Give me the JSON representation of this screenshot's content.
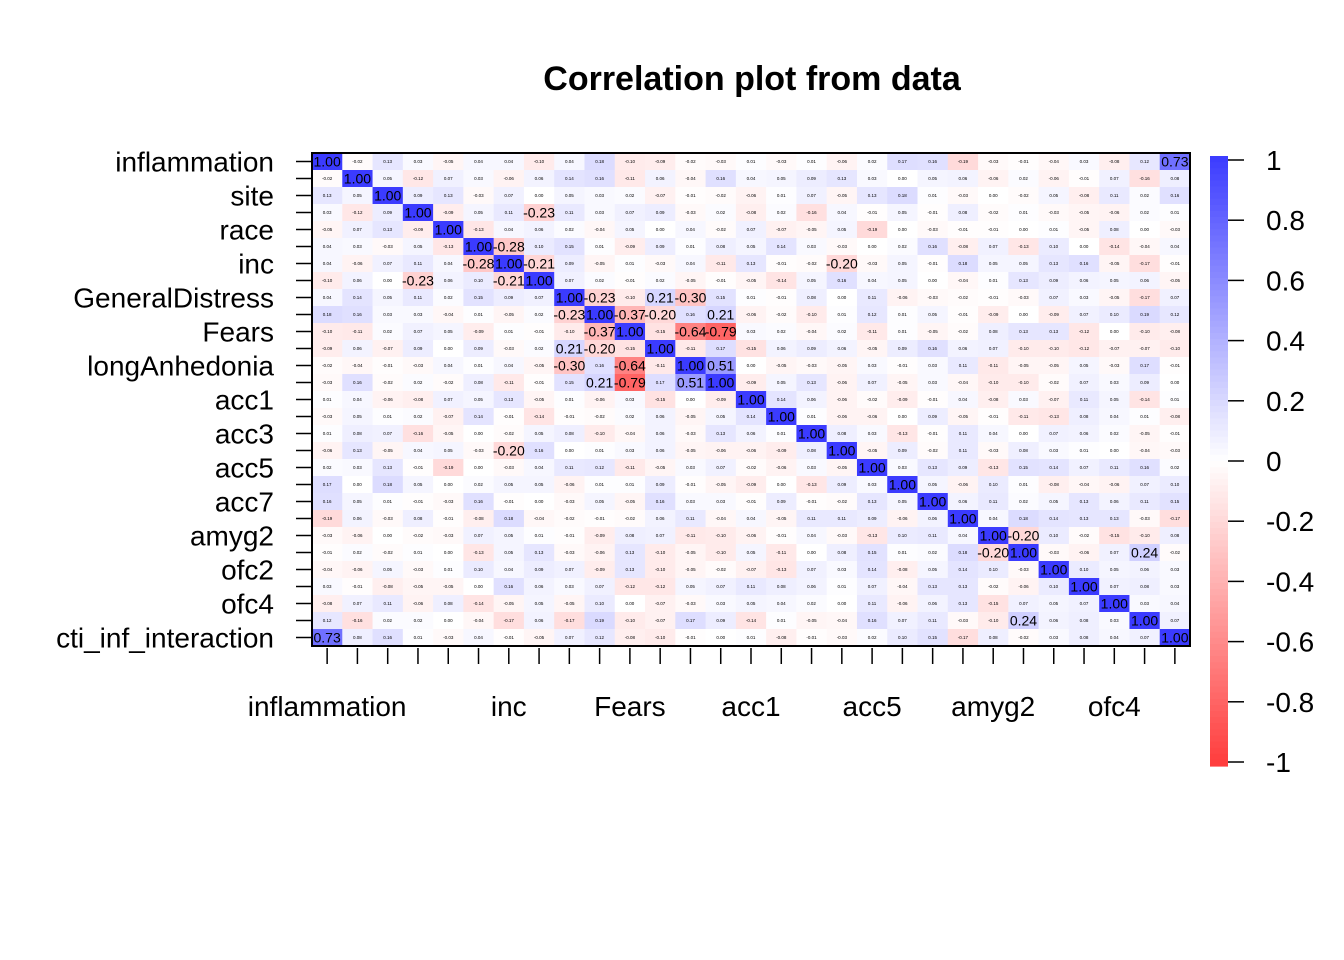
{
  "chart_data": {
    "type": "heatmap",
    "title": "Correlation plot from data",
    "labels": [
      "inflammation",
      "",
      "site",
      "",
      "race",
      "",
      "inc",
      "",
      "GeneralDistress",
      "",
      "Fears",
      "",
      "longAnhedonia",
      "",
      "acc1",
      "",
      "acc3",
      "",
      "acc5",
      "",
      "acc7",
      "",
      "amyg2",
      "",
      "ofc2",
      "",
      "ofc4",
      "",
      "cti_inf_interaction"
    ],
    "x_labels": [
      "inflammation",
      "",
      "",
      "",
      "",
      "",
      "inc",
      "",
      "",
      "",
      "Fears",
      "",
      "",
      "",
      "acc1",
      "",
      "",
      "",
      "acc5",
      "",
      "",
      "",
      "amyg2",
      "",
      "",
      "",
      "ofc4",
      "",
      ""
    ],
    "colorbar": {
      "range": [
        -1,
        1
      ],
      "ticks": [
        "1",
        "0.8",
        "0.6",
        "0.4",
        "0.2",
        "0",
        "-0.2",
        "-0.4",
        "-0.6",
        "-0.8",
        "-1"
      ],
      "colors": {
        "negative": "#ff3b3b",
        "zero": "#ffffff",
        "positive": "#3b3bff"
      }
    },
    "values": [
      [
        1.0,
        -0.02,
        0.13,
        0.03,
        -0.05,
        0.04,
        0.04,
        -0.1,
        0.04,
        0.18,
        -0.1,
        -0.09,
        -0.02,
        -0.03,
        0.01,
        -0.03,
        0.01,
        -0.06,
        0.02,
        0.17,
        0.16,
        -0.19,
        -0.03,
        -0.01,
        -0.04,
        0.03,
        -0.08,
        0.12,
        0.73
      ],
      [
        -0.02,
        1.0,
        0.05,
        -0.12,
        0.07,
        0.03,
        -0.06,
        0.06,
        0.14,
        0.16,
        -0.11,
        0.06,
        -0.04,
        0.16,
        0.04,
        0.05,
        0.09,
        0.13,
        0.03,
        -0.0,
        0.05,
        0.06,
        -0.06,
        0.02,
        -0.06,
        -0.01,
        0.07,
        -0.16,
        0.08
      ],
      [
        0.13,
        0.05,
        1.0,
        0.09,
        0.13,
        -0.03,
        0.07,
        -0.0,
        0.05,
        0.03,
        0.02,
        -0.07,
        -0.01,
        -0.02,
        -0.06,
        0.01,
        0.07,
        -0.05,
        0.13,
        0.18,
        0.01,
        -0.03,
        -0.0,
        -0.02,
        0.05,
        -0.08,
        0.11,
        0.02,
        0.16
      ],
      [
        0.03,
        -0.12,
        0.09,
        1.0,
        -0.09,
        0.05,
        0.11,
        -0.23,
        0.11,
        0.03,
        0.07,
        0.09,
        -0.03,
        0.02,
        -0.08,
        0.02,
        -0.16,
        0.04,
        -0.01,
        0.05,
        -0.01,
        0.08,
        -0.02,
        0.01,
        -0.03,
        -0.05,
        -0.06,
        0.02,
        0.01
      ],
      [
        -0.05,
        0.07,
        0.13,
        -0.09,
        1.0,
        -0.13,
        0.04,
        0.06,
        0.02,
        -0.04,
        0.05,
        -0.0,
        0.04,
        -0.02,
        0.07,
        -0.07,
        -0.05,
        0.05,
        -0.19,
        0.0,
        -0.03,
        -0.01,
        -0.01,
        -0.0,
        0.01,
        -0.05,
        0.08,
        0.0,
        -0.03
      ],
      [
        0.04,
        0.03,
        -0.03,
        0.05,
        -0.13,
        1.0,
        -0.28,
        0.1,
        0.15,
        0.01,
        -0.09,
        0.09,
        0.01,
        0.08,
        0.05,
        0.14,
        0.03,
        -0.03,
        -0.0,
        0.02,
        0.16,
        -0.08,
        0.07,
        -0.13,
        0.1,
        0.0,
        -0.14,
        -0.04,
        0.04
      ],
      [
        0.04,
        -0.06,
        0.07,
        0.11,
        0.04,
        -0.28,
        1.0,
        -0.21,
        0.09,
        -0.05,
        0.01,
        -0.03,
        0.04,
        -0.11,
        0.13,
        -0.01,
        -0.02,
        -0.2,
        -0.03,
        0.05,
        -0.01,
        0.18,
        0.05,
        0.05,
        0.13,
        0.16,
        -0.05,
        -0.17,
        -0.01
      ],
      [
        -0.1,
        0.06,
        -0.0,
        -0.23,
        0.06,
        0.1,
        -0.21,
        1.0,
        0.07,
        0.02,
        -0.01,
        0.02,
        -0.05,
        -0.01,
        -0.05,
        -0.14,
        0.05,
        0.16,
        0.04,
        0.05,
        -0.0,
        -0.04,
        0.01,
        0.13,
        0.09,
        0.06,
        0.05,
        0.06,
        -0.05
      ],
      [
        0.04,
        0.14,
        0.05,
        0.11,
        0.02,
        0.15,
        0.09,
        0.07,
        1.0,
        -0.23,
        -0.1,
        0.21,
        -0.3,
        0.15,
        0.01,
        -0.01,
        0.08,
        -0.0,
        0.11,
        -0.06,
        -0.03,
        -0.02,
        -0.01,
        -0.03,
        0.07,
        0.03,
        -0.05,
        -0.17,
        0.07
      ],
      [
        0.18,
        0.16,
        0.03,
        0.03,
        -0.04,
        0.01,
        -0.05,
        0.02,
        -0.23,
        1.0,
        -0.37,
        -0.2,
        0.16,
        0.21,
        -0.06,
        -0.02,
        -0.1,
        0.01,
        0.12,
        0.01,
        0.05,
        -0.01,
        -0.09,
        -0.0,
        -0.09,
        0.07,
        0.1,
        0.19,
        0.12
      ],
      [
        -0.1,
        -0.11,
        0.02,
        0.07,
        0.05,
        -0.09,
        0.01,
        -0.01,
        -0.1,
        -0.37,
        1.0,
        -0.15,
        -0.64,
        -0.79,
        0.03,
        0.02,
        -0.04,
        0.02,
        -0.11,
        0.01,
        -0.05,
        -0.02,
        0.08,
        0.13,
        0.13,
        -0.12,
        0.0,
        -0.1,
        -0.08
      ],
      [
        -0.09,
        0.06,
        -0.07,
        0.09,
        -0.0,
        0.09,
        -0.03,
        0.02,
        0.21,
        -0.2,
        -0.15,
        1.0,
        -0.11,
        0.17,
        -0.15,
        0.06,
        0.09,
        0.06,
        -0.05,
        0.09,
        0.16,
        0.06,
        0.07,
        -0.1,
        -0.1,
        -0.12,
        -0.07,
        -0.07,
        -0.1
      ],
      [
        -0.02,
        -0.04,
        -0.01,
        -0.03,
        0.04,
        0.01,
        0.04,
        -0.05,
        -0.3,
        0.16,
        -0.64,
        -0.11,
        1.0,
        0.51,
        0.0,
        -0.05,
        -0.03,
        -0.05,
        0.03,
        -0.01,
        0.03,
        0.11,
        -0.11,
        -0.05,
        -0.05,
        0.05,
        -0.03,
        0.17,
        -0.01
      ],
      [
        -0.03,
        0.16,
        -0.02,
        0.02,
        -0.02,
        0.08,
        -0.11,
        -0.01,
        0.15,
        0.21,
        -0.79,
        0.17,
        0.51,
        1.0,
        -0.09,
        0.05,
        0.13,
        -0.06,
        0.07,
        -0.05,
        0.03,
        -0.04,
        -0.1,
        -0.1,
        -0.02,
        0.07,
        0.03,
        0.09,
        0.0
      ],
      [
        0.01,
        0.04,
        -0.06,
        -0.08,
        0.07,
        0.05,
        0.13,
        -0.05,
        0.01,
        -0.06,
        0.03,
        -0.15,
        0.0,
        -0.09,
        1.0,
        0.14,
        0.06,
        -0.06,
        -0.02,
        -0.09,
        -0.01,
        0.04,
        -0.08,
        0.03,
        -0.07,
        0.11,
        0.05,
        -0.14,
        0.01
      ],
      [
        -0.03,
        0.05,
        0.01,
        0.02,
        -0.07,
        0.14,
        -0.01,
        -0.14,
        -0.01,
        -0.02,
        0.02,
        0.06,
        -0.05,
        0.05,
        0.14,
        1.0,
        0.01,
        -0.06,
        -0.06,
        -0.0,
        0.09,
        -0.05,
        -0.01,
        -0.11,
        -0.13,
        0.08,
        0.04,
        0.01,
        -0.08
      ],
      [
        0.01,
        0.08,
        0.07,
        -0.16,
        -0.05,
        0.0,
        -0.02,
        0.05,
        0.08,
        -0.1,
        -0.04,
        0.06,
        -0.03,
        0.13,
        0.06,
        0.01,
        1.0,
        0.08,
        0.03,
        -0.13,
        -0.01,
        0.11,
        0.04,
        -0.0,
        0.07,
        0.06,
        0.02,
        -0.05,
        -0.01
      ],
      [
        -0.06,
        0.13,
        -0.05,
        0.04,
        0.05,
        -0.03,
        -0.2,
        0.16,
        -0.0,
        0.01,
        0.03,
        0.06,
        -0.05,
        -0.06,
        -0.06,
        -0.09,
        0.08,
        1.0,
        -0.05,
        0.09,
        -0.02,
        0.11,
        -0.03,
        0.08,
        0.03,
        0.01,
        0.0,
        -0.04,
        -0.03
      ],
      [
        0.02,
        0.03,
        0.13,
        -0.01,
        -0.19,
        -0.0,
        -0.03,
        0.04,
        0.11,
        0.12,
        -0.11,
        -0.05,
        0.03,
        0.07,
        -0.02,
        -0.06,
        0.03,
        -0.05,
        1.0,
        0.03,
        0.13,
        0.09,
        -0.13,
        0.15,
        0.14,
        0.07,
        0.11,
        0.16,
        0.02
      ],
      [
        0.17,
        -0.0,
        0.18,
        0.05,
        0.0,
        0.02,
        0.05,
        0.05,
        -0.06,
        0.01,
        0.01,
        0.09,
        -0.01,
        -0.05,
        -0.09,
        -0.0,
        -0.13,
        0.09,
        0.03,
        1.0,
        0.05,
        -0.06,
        0.1,
        0.01,
        -0.08,
        -0.04,
        -0.06,
        0.07,
        0.1
      ],
      [
        0.16,
        0.05,
        0.01,
        -0.01,
        -0.03,
        0.16,
        -0.01,
        -0.0,
        -0.03,
        0.05,
        -0.05,
        0.16,
        0.03,
        0.03,
        -0.01,
        0.09,
        -0.01,
        -0.02,
        0.13,
        0.05,
        1.0,
        0.06,
        0.11,
        0.02,
        0.05,
        0.13,
        0.06,
        0.11,
        0.15
      ],
      [
        -0.19,
        0.06,
        -0.03,
        0.08,
        -0.01,
        -0.08,
        0.18,
        -0.04,
        -0.02,
        -0.01,
        -0.02,
        0.06,
        0.11,
        -0.04,
        0.04,
        -0.05,
        0.11,
        0.11,
        0.09,
        -0.06,
        0.06,
        1.0,
        0.04,
        0.18,
        0.14,
        0.13,
        0.13,
        -0.03,
        -0.17
      ],
      [
        -0.03,
        -0.06,
        -0.0,
        -0.02,
        -0.03,
        0.07,
        0.05,
        0.01,
        -0.01,
        -0.09,
        0.08,
        0.07,
        -0.11,
        -0.1,
        -0.06,
        -0.01,
        0.04,
        -0.03,
        -0.13,
        0.1,
        0.11,
        0.04,
        1.0,
        -0.2,
        0.1,
        -0.02,
        -0.15,
        -0.1,
        0.08
      ],
      [
        -0.01,
        0.02,
        -0.02,
        0.01,
        -0.0,
        -0.13,
        0.05,
        0.13,
        -0.03,
        -0.06,
        0.13,
        -0.1,
        -0.05,
        -0.1,
        0.05,
        -0.11,
        -0.0,
        0.08,
        0.15,
        0.01,
        0.02,
        0.18,
        -0.2,
        1.0,
        -0.03,
        -0.06,
        0.07,
        0.24,
        -0.02
      ],
      [
        -0.04,
        -0.06,
        0.05,
        -0.03,
        0.01,
        0.1,
        0.04,
        0.09,
        0.07,
        -0.09,
        0.13,
        -0.1,
        -0.05,
        -0.02,
        -0.07,
        -0.13,
        0.07,
        0.03,
        0.14,
        -0.08,
        0.05,
        0.14,
        0.1,
        -0.03,
        1.0,
        0.1,
        0.05,
        0.06,
        0.03
      ],
      [
        0.03,
        -0.01,
        -0.08,
        -0.05,
        -0.05,
        0.0,
        0.16,
        0.06,
        0.03,
        0.07,
        -0.12,
        -0.12,
        0.05,
        0.07,
        0.11,
        0.08,
        0.06,
        0.01,
        0.07,
        -0.04,
        0.13,
        0.13,
        -0.02,
        -0.06,
        0.1,
        1.0,
        0.07,
        0.08,
        0.03
      ],
      [
        -0.08,
        0.07,
        0.11,
        -0.06,
        0.08,
        -0.14,
        -0.05,
        0.05,
        -0.05,
        0.1,
        0.0,
        -0.07,
        -0.03,
        0.03,
        0.05,
        0.04,
        0.02,
        0.0,
        0.11,
        -0.06,
        0.06,
        0.13,
        -0.15,
        0.07,
        0.05,
        0.07,
        1.0,
        0.03,
        0.04
      ],
      [
        0.12,
        -0.16,
        0.02,
        0.02,
        0.0,
        -0.04,
        -0.17,
        0.06,
        -0.17,
        0.19,
        -0.1,
        -0.07,
        0.17,
        0.09,
        -0.14,
        0.01,
        -0.05,
        -0.04,
        0.16,
        0.07,
        0.11,
        -0.03,
        -0.1,
        0.24,
        0.06,
        0.08,
        0.03,
        1.0,
        0.07
      ],
      [
        0.73,
        0.08,
        0.16,
        0.01,
        -0.03,
        0.04,
        -0.01,
        -0.05,
        0.07,
        0.12,
        -0.08,
        -0.1,
        -0.01,
        0.0,
        0.01,
        -0.08,
        -0.01,
        -0.03,
        0.02,
        0.1,
        0.15,
        -0.17,
        0.08,
        -0.02,
        0.03,
        0.08,
        0.04,
        0.07,
        1.0
      ]
    ]
  }
}
